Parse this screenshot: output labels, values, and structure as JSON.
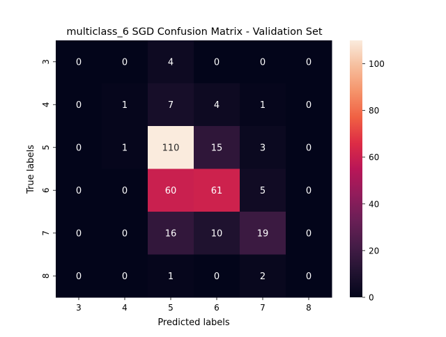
{
  "chart_data": {
    "type": "heatmap",
    "title": "multiclass_6  SGD Confusion Matrix - Validation Set",
    "xlabel": "Predicted labels",
    "ylabel": "True labels",
    "x_categories": [
      "3",
      "4",
      "5",
      "6",
      "7",
      "8"
    ],
    "y_categories": [
      "3",
      "4",
      "5",
      "6",
      "7",
      "8"
    ],
    "values": [
      [
        0,
        0,
        4,
        0,
        0,
        0
      ],
      [
        0,
        1,
        7,
        4,
        1,
        0
      ],
      [
        0,
        1,
        110,
        15,
        3,
        0
      ],
      [
        0,
        0,
        60,
        61,
        5,
        0
      ],
      [
        0,
        0,
        16,
        10,
        19,
        0
      ],
      [
        0,
        0,
        1,
        0,
        2,
        0
      ]
    ],
    "colorbar": {
      "colormap": "rocket",
      "range": [
        0,
        110
      ],
      "ticks": [
        0,
        20,
        40,
        60,
        80,
        100
      ]
    },
    "grid": false,
    "legend": "colorbar-right"
  }
}
